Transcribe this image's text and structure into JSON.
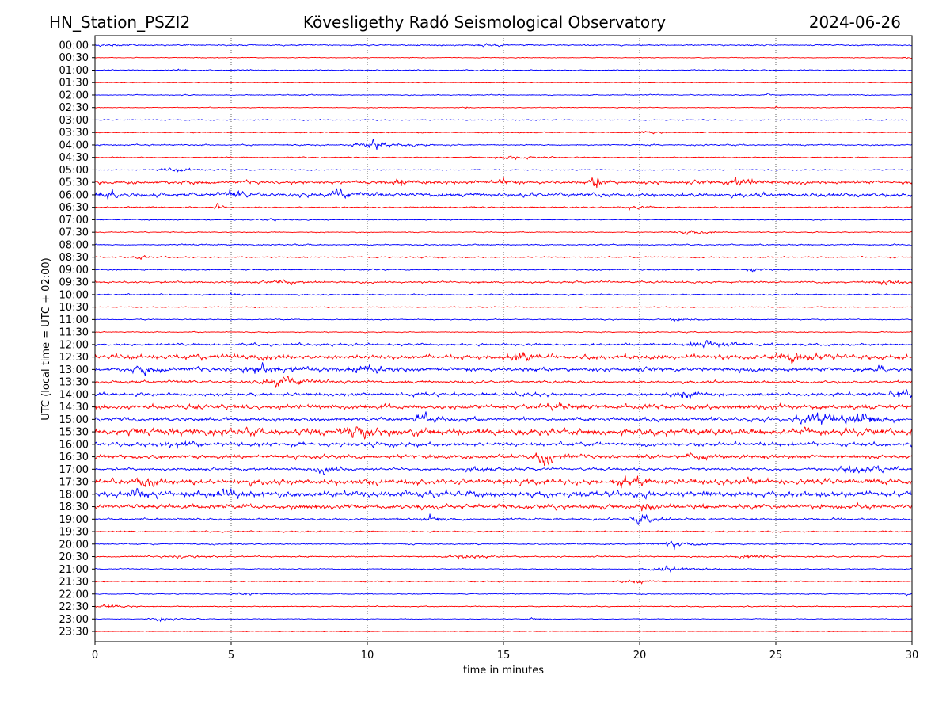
{
  "chart_data": {
    "type": "line",
    "station_title": "HN_Station_PSZI2",
    "title": "Kövesligethy Radó Seismological Observatory",
    "date": "2024-06-26",
    "xlabel": "time in minutes",
    "ylabel": "UTC (local time = UTC + 02:00)",
    "xlim": [
      0,
      30
    ],
    "xticks": [
      "0",
      "5",
      "10",
      "15",
      "20",
      "25",
      "30"
    ],
    "grid": "vertical dotted at x ticks",
    "colors": [
      "#0000ff",
      "#ff0000"
    ],
    "traces": [
      {
        "label": "00:00",
        "noise": 0.2,
        "bursts": [
          [
            0.5,
            0.4,
            0.6
          ],
          [
            14.5,
            0.3,
            0.6
          ]
        ]
      },
      {
        "label": "00:30",
        "noise": 0.1,
        "bursts": [
          [
            29.8,
            0.3,
            0.3
          ]
        ]
      },
      {
        "label": "01:00",
        "noise": 0.15,
        "bursts": [
          [
            3.1,
            0.5,
            0.2
          ],
          [
            5.1,
            0.3,
            0.1
          ]
        ]
      },
      {
        "label": "01:30",
        "noise": 0.1,
        "bursts": []
      },
      {
        "label": "02:00",
        "noise": 0.15,
        "bursts": [
          [
            24.7,
            0.7,
            0.1
          ]
        ]
      },
      {
        "label": "02:30",
        "noise": 0.1,
        "bursts": [
          [
            13.6,
            0.4,
            0.1
          ],
          [
            25,
            0.4,
            0.1
          ]
        ]
      },
      {
        "label": "03:00",
        "noise": 0.15,
        "bursts": []
      },
      {
        "label": "03:30",
        "noise": 0.15,
        "bursts": [
          [
            20.2,
            0.3,
            0.6
          ]
        ]
      },
      {
        "label": "04:00",
        "noise": 0.2,
        "bursts": [
          [
            10.2,
            1.2,
            1.0
          ]
        ]
      },
      {
        "label": "04:30",
        "noise": 0.15,
        "bursts": [
          [
            15.2,
            0.6,
            1.0
          ]
        ]
      },
      {
        "label": "05:00",
        "noise": 0.15,
        "bursts": [
          [
            3.0,
            0.5,
            1.0
          ]
        ]
      },
      {
        "label": "05:30",
        "noise": 0.5,
        "bursts": [
          [
            18.4,
            2.0,
            0.3
          ],
          [
            11.2,
            1.5,
            0.3
          ],
          [
            23.6,
            1.3,
            0.5
          ],
          [
            15,
            1.1,
            0.2
          ]
        ]
      },
      {
        "label": "06:00",
        "noise": 0.6,
        "bursts": [
          [
            5.0,
            1.5,
            0.3
          ],
          [
            9.0,
            1.2,
            0.5
          ],
          [
            0.5,
            0.9,
            0.4
          ]
        ]
      },
      {
        "label": "06:30",
        "noise": 0.2,
        "bursts": [
          [
            4.5,
            1.5,
            0.2
          ],
          [
            19.8,
            0.5,
            0.8
          ]
        ]
      },
      {
        "label": "07:00",
        "noise": 0.15,
        "bursts": [
          [
            6.4,
            0.3,
            0.5
          ]
        ]
      },
      {
        "label": "07:30",
        "noise": 0.15,
        "bursts": [
          [
            21.8,
            0.6,
            0.8
          ]
        ]
      },
      {
        "label": "08:00",
        "noise": 0.2,
        "bursts": []
      },
      {
        "label": "08:30",
        "noise": 0.2,
        "bursts": [
          [
            1.6,
            0.5,
            0.5
          ]
        ]
      },
      {
        "label": "09:00",
        "noise": 0.2,
        "bursts": [
          [
            24.1,
            0.5,
            0.3
          ]
        ]
      },
      {
        "label": "09:30",
        "noise": 0.3,
        "bursts": [
          [
            6.8,
            0.6,
            0.5
          ],
          [
            29,
            0.7,
            0.6
          ]
        ]
      },
      {
        "label": "10:00",
        "noise": 0.2,
        "bursts": [
          [
            5.0,
            0.4,
            0.3
          ]
        ]
      },
      {
        "label": "10:30",
        "noise": 0.15,
        "bursts": []
      },
      {
        "label": "11:00",
        "noise": 0.15,
        "bursts": [
          [
            21.4,
            0.5,
            0.6
          ]
        ]
      },
      {
        "label": "11:30",
        "noise": 0.15,
        "bursts": []
      },
      {
        "label": "12:00",
        "noise": 0.35,
        "bursts": [
          [
            22.5,
            0.8,
            1.2
          ]
        ]
      },
      {
        "label": "12:30",
        "noise": 0.7,
        "bursts": [
          [
            25.7,
            1.3,
            1.0
          ],
          [
            15.5,
            1.0,
            0.6
          ]
        ]
      },
      {
        "label": "13:00",
        "noise": 0.6,
        "bursts": [
          [
            6.2,
            1.2,
            1.0
          ],
          [
            1.8,
            1.0,
            0.6
          ],
          [
            10.0,
            1.0,
            0.8
          ],
          [
            28.8,
            1.5,
            0.1
          ]
        ]
      },
      {
        "label": "13:30",
        "noise": 0.4,
        "bursts": [
          [
            6.8,
            1.8,
            0.8
          ]
        ]
      },
      {
        "label": "14:00",
        "noise": 0.5,
        "bursts": [
          [
            21.6,
            1.2,
            0.6
          ],
          [
            29.5,
            1.0,
            0.5
          ]
        ]
      },
      {
        "label": "14:30",
        "noise": 0.7,
        "bursts": [
          [
            17,
            0.8,
            0.8
          ]
        ]
      },
      {
        "label": "15:00",
        "noise": 0.6,
        "bursts": [
          [
            28.0,
            2.0,
            0.6
          ],
          [
            26.5,
            1.6,
            1.0
          ],
          [
            12,
            1.3,
            0.6
          ]
        ]
      },
      {
        "label": "15:30",
        "noise": 1.0,
        "bursts": [
          [
            9.5,
            1.5,
            0.6
          ]
        ]
      },
      {
        "label": "16:00",
        "noise": 0.6,
        "bursts": [
          [
            3.0,
            1.0,
            0.5
          ]
        ]
      },
      {
        "label": "16:30",
        "noise": 0.6,
        "bursts": [
          [
            16.5,
            2.0,
            0.5
          ],
          [
            21.8,
            1.0,
            0.5
          ]
        ]
      },
      {
        "label": "17:00",
        "noise": 0.4,
        "bursts": [
          [
            8.5,
            1.2,
            0.6
          ],
          [
            28.0,
            1.4,
            1.0
          ],
          [
            14.0,
            0.6,
            0.8
          ]
        ]
      },
      {
        "label": "17:30",
        "noise": 0.8,
        "bursts": [
          [
            1.8,
            1.2,
            0.6
          ],
          [
            19.5,
            1.1,
            0.8
          ]
        ]
      },
      {
        "label": "18:00",
        "noise": 0.9,
        "bursts": [
          [
            4.8,
            1.4,
            0.5
          ],
          [
            1.6,
            1.3,
            0.5
          ]
        ]
      },
      {
        "label": "18:30",
        "noise": 0.7,
        "bursts": [
          [
            20.2,
            1.3,
            0.4
          ]
        ]
      },
      {
        "label": "19:00",
        "noise": 0.3,
        "bursts": [
          [
            12.3,
            1.0,
            0.6
          ],
          [
            20.1,
            1.2,
            0.6
          ]
        ]
      },
      {
        "label": "19:30",
        "noise": 0.2,
        "bursts": []
      },
      {
        "label": "20:00",
        "noise": 0.2,
        "bursts": [
          [
            21.2,
            1.0,
            0.8
          ]
        ]
      },
      {
        "label": "20:30",
        "noise": 0.2,
        "bursts": [
          [
            13.5,
            0.7,
            1.0
          ],
          [
            24.0,
            0.5,
            1.0
          ],
          [
            3.2,
            0.4,
            1.0
          ]
        ]
      },
      {
        "label": "21:00",
        "noise": 0.15,
        "bursts": [
          [
            21.0,
            0.7,
            1.2
          ]
        ]
      },
      {
        "label": "21:30",
        "noise": 0.15,
        "bursts": [
          [
            19.8,
            0.5,
            0.8
          ]
        ]
      },
      {
        "label": "22:00",
        "noise": 0.15,
        "bursts": [
          [
            5.5,
            0.4,
            0.8
          ],
          [
            29.9,
            0.5,
            0.2
          ]
        ]
      },
      {
        "label": "22:30",
        "noise": 0.15,
        "bursts": [
          [
            0.5,
            0.6,
            0.6
          ]
        ]
      },
      {
        "label": "23:00",
        "noise": 0.1,
        "bursts": [
          [
            2.4,
            0.6,
            0.6
          ],
          [
            16.2,
            0.3,
            0.6
          ]
        ]
      },
      {
        "label": "23:30",
        "noise": 0.1,
        "bursts": []
      }
    ]
  }
}
